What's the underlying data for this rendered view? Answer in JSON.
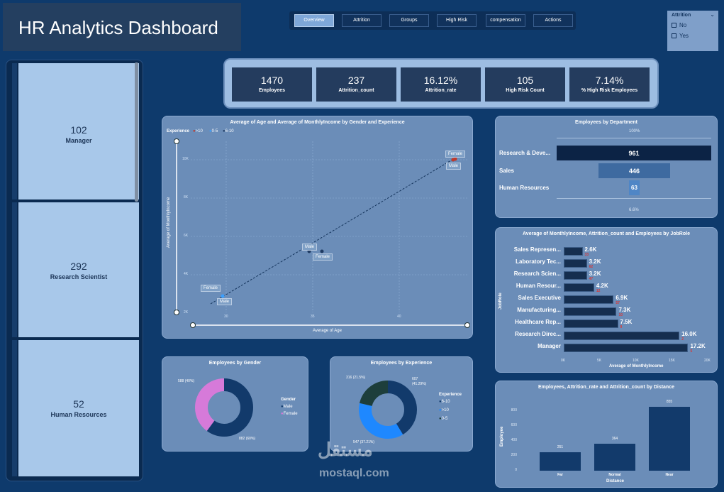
{
  "header": {
    "title": "HR Analytics Dashboard"
  },
  "nav": [
    {
      "label": "Overview",
      "active": true
    },
    {
      "label": "Attrition",
      "active": false
    },
    {
      "label": "Groups",
      "active": false
    },
    {
      "label": "High Risk",
      "active": false
    },
    {
      "label": "compensation",
      "active": false
    },
    {
      "label": "Actions",
      "active": false
    }
  ],
  "slicer": {
    "title": "Attrition",
    "options": [
      "No",
      "Yes"
    ]
  },
  "roles": [
    {
      "value": "102",
      "label": "Manager"
    },
    {
      "value": "292",
      "label": "Research Scientist"
    },
    {
      "value": "52",
      "label": "Human Resources"
    }
  ],
  "kpis": [
    {
      "value": "1470",
      "label": "Employees"
    },
    {
      "value": "237",
      "label": "Attrition_count"
    },
    {
      "value": "16.12%",
      "label": "Attrition_rate"
    },
    {
      "value": "105",
      "label": "High Risk Count"
    },
    {
      "value": "7.14%",
      "label": "% High Risk Employees"
    }
  ],
  "scatter": {
    "title": "Average of Age and Average of MonthlyIncome by Gender and Experience",
    "legend_title": "Experience",
    "legend": [
      {
        "name": ">10",
        "color": "#c0392b"
      },
      {
        "name": "0-5",
        "color": "#3aa0ff"
      },
      {
        "name": "6-10",
        "color": "#1f3b63"
      }
    ],
    "xlabel": "Average of Age",
    "ylabel": "Average of MonthlyIncome",
    "xticks": [
      "30",
      "35",
      "40"
    ],
    "yticks": [
      "2K",
      "4K",
      "6K",
      "8K",
      "10K"
    ],
    "labels": [
      "Female",
      "Male",
      "Male",
      "Female",
      "Female",
      "Male"
    ]
  },
  "department": {
    "title": "Employees by Department",
    "top_label": "100%",
    "bottom_label": "6.6%",
    "items": [
      {
        "name": "Research & Deve...",
        "value": "961"
      },
      {
        "name": "Sales",
        "value": "446"
      },
      {
        "name": "Human Resources",
        "value": "63"
      }
    ]
  },
  "jobrole": {
    "title": "Average of MonthlyIncome, Attrition_count and Employees by JobRole",
    "ylabel": "JobRole",
    "xlabel": "Average of MonthlyIncome",
    "xticks": [
      "0K",
      "5K",
      "10K",
      "15K",
      "20K"
    ],
    "rows": [
      {
        "name": "Sales Represen...",
        "value": "2.6K",
        "sub": "33"
      },
      {
        "name": "Laboratory Tec...",
        "value": "3.2K",
        "sub": "62"
      },
      {
        "name": "Research Scien...",
        "value": "3.2K",
        "sub": "47"
      },
      {
        "name": "Human Resour...",
        "value": "4.2K",
        "sub": "12"
      },
      {
        "name": "Sales Executive",
        "value": "6.9K",
        "sub": "57"
      },
      {
        "name": "Manufacturing...",
        "value": "7.3K",
        "sub": "10"
      },
      {
        "name": "Healthcare Rep...",
        "value": "7.5K",
        "sub": "9"
      },
      {
        "name": "Research Direc...",
        "value": "16.0K",
        "sub": "2"
      },
      {
        "name": "Manager",
        "value": "17.2K",
        "sub": "5"
      }
    ]
  },
  "gender": {
    "title": "Employees by Gender",
    "legend_title": "Gender",
    "legend": [
      {
        "name": "Male",
        "color": "#123a6b"
      },
      {
        "name": "Female",
        "color": "#d67ad9"
      }
    ],
    "label_female": "588 (40%)",
    "label_male": "882 (60%)"
  },
  "experience": {
    "title": "Employees by Experience",
    "legend_title": "Experience",
    "legend": [
      {
        "name": "6-10",
        "color": "#123a6b"
      },
      {
        "name": ">10",
        "color": "#1e88ff"
      },
      {
        "name": "0-5",
        "color": "#1d3e3b"
      }
    ],
    "label_a": "316 (21.5%)",
    "label_b1": "607",
    "label_b2": "(41.29%)",
    "label_c": "547 (37.21%)"
  },
  "distance": {
    "title": "Employees, Attrition_rate and Attrition_count by Distance",
    "ylabel": "Employee",
    "xlabel": "Distance",
    "yticks": [
      "0",
      "200",
      "400",
      "600",
      "800"
    ],
    "categories": [
      "Far",
      "Normal",
      "Near"
    ],
    "values": [
      "251",
      "364",
      "855"
    ]
  },
  "chart_data": [
    {
      "type": "bar",
      "title": "Employees by Department",
      "categories": [
        "Research & Deve...",
        "Sales",
        "Human Resources"
      ],
      "values": [
        961,
        446,
        63
      ]
    },
    {
      "type": "bar",
      "title": "Average of MonthlyIncome, Attrition_count and Employees by JobRole",
      "categories": [
        "Sales Represen...",
        "Laboratory Tec...",
        "Research Scien...",
        "Human Resour...",
        "Sales Executive",
        "Manufacturing...",
        "Healthcare Rep...",
        "Research Direc...",
        "Manager"
      ],
      "values": [
        2600,
        3200,
        3200,
        4200,
        6900,
        7300,
        7500,
        16000,
        17200
      ],
      "xlabel": "Average of MonthlyIncome",
      "ylabel": "JobRole",
      "xlim": [
        0,
        20000
      ]
    },
    {
      "type": "pie",
      "title": "Employees by Gender",
      "categories": [
        "Male",
        "Female"
      ],
      "values": [
        882,
        588
      ]
    },
    {
      "type": "pie",
      "title": "Employees by Experience",
      "categories": [
        "6-10",
        ">10",
        "0-5"
      ],
      "values": [
        607,
        547,
        316
      ]
    },
    {
      "type": "bar",
      "title": "Employees, Attrition_rate and Attrition_count by Distance",
      "categories": [
        "Far",
        "Normal",
        "Near"
      ],
      "values": [
        251,
        364,
        855
      ],
      "ylabel": "Employee",
      "xlabel": "Distance",
      "ylim": [
        0,
        900
      ]
    }
  ]
}
